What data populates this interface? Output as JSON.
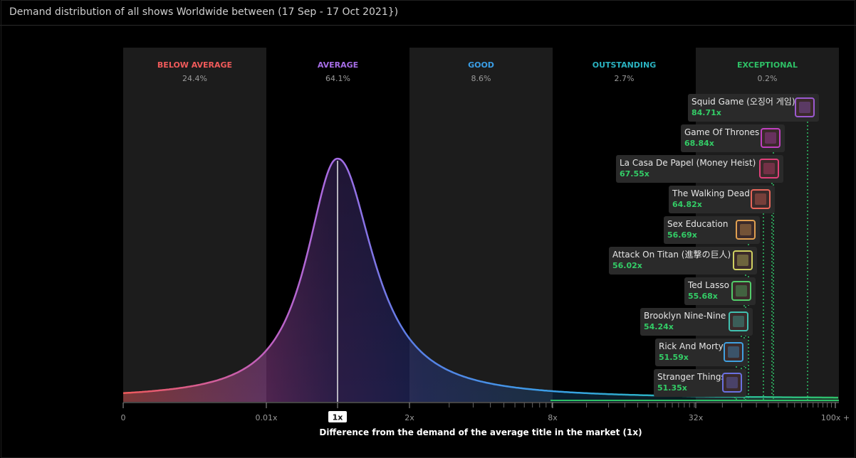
{
  "header": {
    "title": "Demand distribution of all shows Worldwide between (17 Sep - 17 Oct 2021})"
  },
  "colors": {
    "below_average": "#f05a5a",
    "average": "#a56de6",
    "good": "#3a9ee6",
    "outstanding": "#2ab2c0",
    "exceptional": "#2ec066",
    "value_green": "#33cc66",
    "band_dark": "#1c1c1c"
  },
  "chart_data": {
    "type": "area",
    "xlabel": "Difference from the demand of the average title in the market (1x)",
    "x_ticks": [
      "0",
      "0.01x",
      "1x",
      "2x",
      "8x",
      "32x",
      "100x +"
    ],
    "highlighted_tick": "1x",
    "bands": [
      {
        "name": "BELOW AVERAGE",
        "percent": "24.4%",
        "color": "#f05a5a"
      },
      {
        "name": "AVERAGE",
        "percent": "64.1%",
        "color": "#a56de6"
      },
      {
        "name": "GOOD",
        "percent": "8.6%",
        "color": "#3a9ee6"
      },
      {
        "name": "OUTSTANDING",
        "percent": "2.7%",
        "color": "#2ab2c0"
      },
      {
        "name": "EXCEPTIONAL",
        "percent": "0.2%",
        "color": "#2ec066"
      }
    ],
    "titles": [
      {
        "name": "Squid Game (오징어 게임)",
        "value": "84.71x",
        "demand": 84.71,
        "frame": "#9b59d0",
        "icon": "squid-game-poster-icon"
      },
      {
        "name": "Game Of Thrones",
        "value": "68.84x",
        "demand": 68.84,
        "frame": "#c040c0",
        "icon": "game-of-thrones-poster-icon"
      },
      {
        "name": "La Casa De Papel (Money Heist)",
        "value": "67.55x",
        "demand": 67.55,
        "frame": "#e0407a",
        "icon": "money-heist-poster-icon"
      },
      {
        "name": "The Walking Dead",
        "value": "64.82x",
        "demand": 64.82,
        "frame": "#e8665a",
        "icon": "walking-dead-poster-icon"
      },
      {
        "name": "Sex Education",
        "value": "56.69x",
        "demand": 56.69,
        "frame": "#e0a050",
        "icon": "sex-education-poster-icon"
      },
      {
        "name": "Attack On Titan (進撃の巨人)",
        "value": "56.02x",
        "demand": 56.02,
        "frame": "#cfd060",
        "icon": "attack-on-titan-poster-icon"
      },
      {
        "name": "Ted Lasso",
        "value": "55.68x",
        "demand": 55.68,
        "frame": "#52cc6a",
        "icon": "ted-lasso-poster-icon"
      },
      {
        "name": "Brooklyn Nine-Nine",
        "value": "54.24x",
        "demand": 54.24,
        "frame": "#40c0b0",
        "icon": "brooklyn-nine-nine-poster-icon"
      },
      {
        "name": "Rick And Morty",
        "value": "51.59x",
        "demand": 51.59,
        "frame": "#40a0e0",
        "icon": "rick-and-morty-poster-icon"
      },
      {
        "name": "Stranger Things",
        "value": "51.35x",
        "demand": 51.35,
        "frame": "#6a70e0",
        "icon": "stranger-things-poster-icon"
      }
    ]
  }
}
